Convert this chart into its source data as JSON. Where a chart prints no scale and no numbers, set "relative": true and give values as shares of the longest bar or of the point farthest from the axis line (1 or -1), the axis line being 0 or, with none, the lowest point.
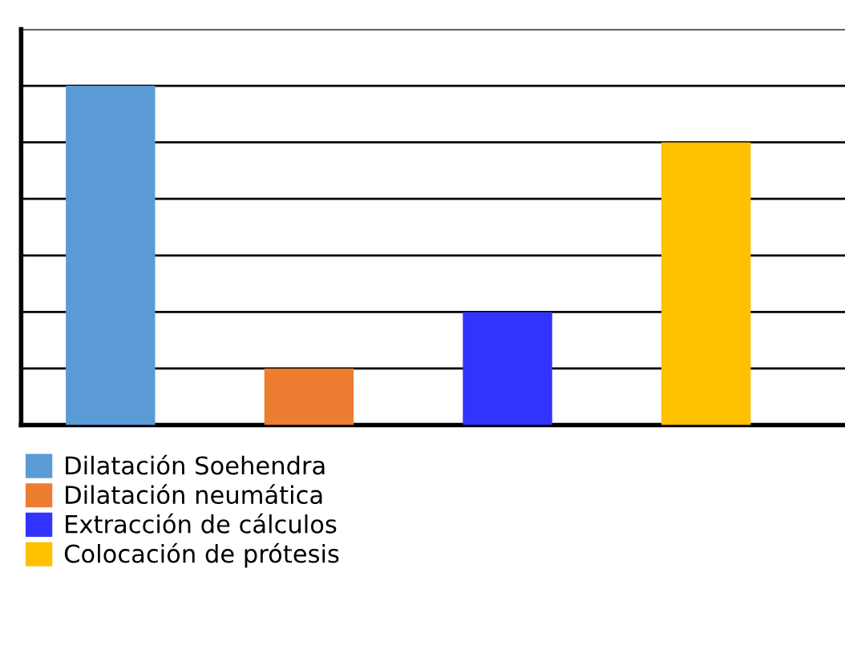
{
  "chart_data": {
    "type": "bar",
    "relative": true,
    "stacked": true,
    "categories": [
      null,
      null,
      null,
      null
    ],
    "series": [
      {
        "name": "Dilatación Soehendra",
        "color": "#5b9bd5",
        "values": [
          1,
          null,
          null,
          null
        ]
      },
      {
        "name": "Dilatación neumática",
        "color": "#ed7d31",
        "values": [
          null,
          0.1667,
          null,
          null
        ]
      },
      {
        "name": "Extracción de cálculos",
        "color": "#3333ff",
        "values": [
          null,
          null,
          0.3333,
          null
        ]
      },
      {
        "name": "Colocación de prótesis",
        "color": "#ffc000",
        "values": [
          null,
          null,
          null,
          0.8333
        ]
      }
    ],
    "grid": "y",
    "legend": "bottom left",
    "tick_labels": false
  }
}
